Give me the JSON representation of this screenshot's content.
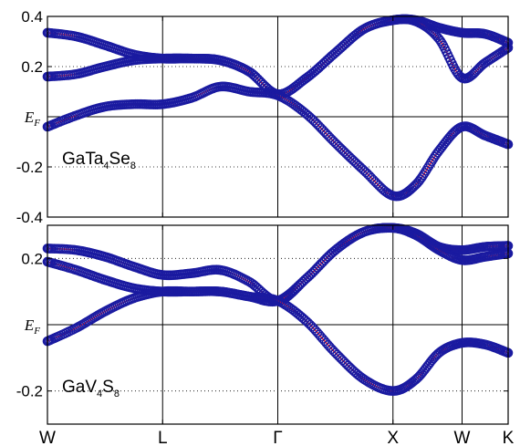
{
  "chart_data": [
    {
      "type": "line",
      "material_label": {
        "base": "GaTa",
        "sub1": "4",
        "mid": "Se",
        "sub2": "8"
      },
      "y_tick_labels": [
        "0.4",
        "0.2",
        "",
        "-0.2",
        "-0.4"
      ],
      "y_tick_values": [
        0.4,
        0.2,
        0,
        -0.2,
        -0.4
      ],
      "ef_label": {
        "main": "E",
        "sub": "F"
      },
      "ylim": [
        -0.4,
        0.4
      ],
      "k_points": [
        "W",
        "L",
        "Γ",
        "X",
        "W",
        "K"
      ],
      "k_positions": [
        0,
        1,
        2,
        3,
        3.6,
        4
      ],
      "grid": "dotted",
      "series": [
        {
          "x": [
            0,
            0.25,
            0.5,
            0.75,
            1,
            1.25,
            1.5,
            1.75,
            2,
            2.25,
            2.5,
            2.75,
            3,
            3.2,
            3.4,
            3.6,
            3.8,
            4
          ],
          "y": [
            0.335,
            0.32,
            0.285,
            0.248,
            0.232,
            0.232,
            0.225,
            0.18,
            0.09,
            0.155,
            0.255,
            0.35,
            0.385,
            0.385,
            0.355,
            0.335,
            0.33,
            0.295
          ]
        },
        {
          "x": [
            0,
            0.25,
            0.5,
            0.75,
            1,
            1.25,
            1.5,
            1.75,
            2,
            2.25,
            2.5,
            2.75,
            3,
            3.2,
            3.4,
            3.6,
            3.8,
            4
          ],
          "y": [
            0.16,
            0.17,
            0.2,
            0.225,
            0.232,
            0.232,
            0.225,
            0.18,
            0.09,
            0.155,
            0.255,
            0.35,
            0.385,
            0.38,
            0.31,
            0.155,
            0.215,
            0.275
          ]
        },
        {
          "x": [
            0,
            0.25,
            0.5,
            0.75,
            1,
            1.25,
            1.5,
            1.75,
            2,
            2.25,
            2.5,
            2.75,
            3,
            3.2,
            3.4,
            3.6,
            3.8,
            4
          ],
          "y": [
            -0.04,
            0.005,
            0.04,
            0.05,
            0.05,
            0.075,
            0.12,
            0.1,
            0.085,
            0.01,
            -0.105,
            -0.215,
            -0.315,
            -0.27,
            -0.135,
            -0.04,
            -0.075,
            -0.11
          ]
        }
      ]
    },
    {
      "type": "line",
      "material_label": {
        "base": "GaV",
        "sub1": "4",
        "mid": "S",
        "sub2": "8"
      },
      "y_tick_labels": [
        "0.2",
        "",
        "-0.2"
      ],
      "y_tick_values": [
        0.2,
        0,
        -0.2
      ],
      "ef_label": {
        "main": "E",
        "sub": "F"
      },
      "ylim": [
        -0.3,
        0.3
      ],
      "k_points": [
        "W",
        "L",
        "Γ",
        "X",
        "W",
        "K"
      ],
      "k_positions": [
        0,
        1,
        2,
        3,
        3.6,
        4
      ],
      "grid": "dotted",
      "series": [
        {
          "x": [
            0,
            0.25,
            0.5,
            0.75,
            1,
            1.25,
            1.5,
            1.75,
            2,
            2.25,
            2.5,
            2.75,
            3,
            3.2,
            3.4,
            3.6,
            3.8,
            4
          ],
          "y": [
            0.23,
            0.225,
            0.205,
            0.175,
            0.15,
            0.155,
            0.165,
            0.13,
            0.072,
            0.14,
            0.225,
            0.28,
            0.292,
            0.275,
            0.235,
            0.225,
            0.235,
            0.238
          ]
        },
        {
          "x": [
            0,
            0.25,
            0.5,
            0.75,
            1,
            1.25,
            1.5,
            1.75,
            2,
            2.25,
            2.5,
            2.75,
            3,
            3.2,
            3.4,
            3.6,
            3.8,
            4
          ],
          "y": [
            0.19,
            0.165,
            0.135,
            0.11,
            0.1,
            0.1,
            0.1,
            0.085,
            0.072,
            0.14,
            0.225,
            0.28,
            0.292,
            0.27,
            0.225,
            0.195,
            0.205,
            0.215
          ]
        },
        {
          "x": [
            0,
            0.25,
            0.5,
            0.75,
            1,
            1.25,
            1.5,
            1.75,
            2,
            2.25,
            2.5,
            2.75,
            3,
            3.2,
            3.4,
            3.6,
            3.8,
            4
          ],
          "y": [
            -0.05,
            -0.01,
            0.04,
            0.08,
            0.1,
            0.1,
            0.1,
            0.085,
            0.072,
            0.01,
            -0.085,
            -0.165,
            -0.2,
            -0.165,
            -0.085,
            -0.055,
            -0.06,
            -0.085
          ]
        }
      ]
    }
  ],
  "colors": {
    "marker_edge": "#1a1aa0",
    "line": "#ff2020",
    "axis": "#000000",
    "grid": "#000000"
  }
}
